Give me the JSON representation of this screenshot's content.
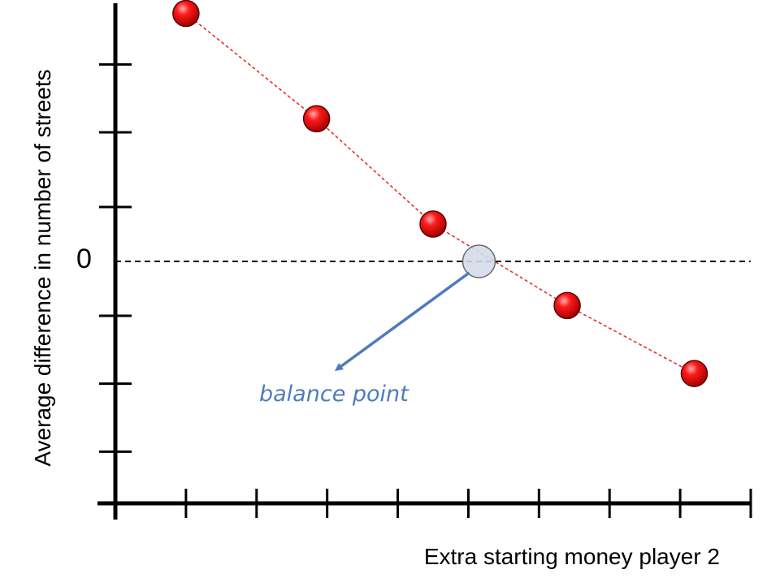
{
  "chart_data": {
    "type": "line",
    "title": "",
    "xlabel": "Extra starting money player 2",
    "ylabel": "Average difference in number of streets",
    "xlim": [
      0,
      9
    ],
    "ylim": [
      -3.8,
      3.8
    ],
    "x_ticks": [
      1,
      2,
      3,
      4,
      5,
      6,
      7,
      8,
      9
    ],
    "y_ticks": [
      -2.8,
      -1.8,
      -0.8,
      0.8,
      1.9,
      2.9
    ],
    "y_zero_label": "0",
    "series": [
      {
        "x": [
          1.0,
          2.85,
          4.5,
          6.4,
          8.2
        ],
        "y": [
          3.65,
          2.1,
          0.55,
          -0.65,
          -1.65
        ]
      }
    ],
    "reference_line": {
      "y": 0
    },
    "balance_point": {
      "x": 5.15,
      "y": 0
    },
    "annotations": [
      {
        "text": "balance point"
      }
    ],
    "colors": {
      "axis": "#000000",
      "series_line": "#e8231f",
      "marker_fill": "#e80a0a",
      "marker_stroke": "#5a0000",
      "balance_marker_fill": "#d4dbe8",
      "balance_marker_stroke": "#5b5b5b",
      "annotation": "#4f7bbd"
    },
    "grid": false,
    "legend": "none"
  }
}
